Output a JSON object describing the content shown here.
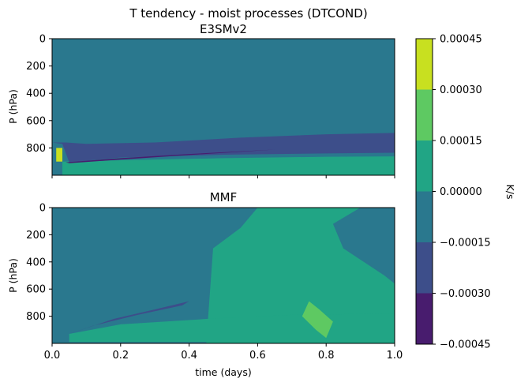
{
  "figure": {
    "suptitle": "T tendency - moist processes (DTCOND)"
  },
  "colorbar": {
    "label": "K/s",
    "levels": [
      -0.00045,
      -0.0003,
      -0.00015,
      0.0,
      0.00015,
      0.0003,
      0.00045
    ],
    "tick_labels": [
      "−0.00045",
      "−0.00030",
      "−0.00015",
      "0.00000",
      "0.00015",
      "0.00030",
      "0.00045"
    ],
    "colors": [
      "#481c6e",
      "#3d4e8a",
      "#2a788e",
      "#21a585",
      "#5ec962",
      "#c8e020"
    ]
  },
  "chart_data": [
    {
      "type": "heatmap",
      "title": "E3SMv2",
      "xlabel": "",
      "ylabel": "P (hPa)",
      "xlim": [
        0.0,
        1.0
      ],
      "ylim": [
        1000,
        0
      ],
      "yticks": [
        0,
        200,
        400,
        600,
        800
      ],
      "ytick_labels": [
        "0",
        "200",
        "400",
        "600",
        "800"
      ],
      "xticks": [
        0.0,
        0.2,
        0.4,
        0.6,
        0.8,
        1.0
      ],
      "xtick_labels_shown": false,
      "background_level_index": 2,
      "features": [
        {
          "name": "lower-boundary-layer",
          "level_index": 3,
          "t": [
            0.03,
            1.0
          ],
          "p": [
            860,
            1000
          ]
        },
        {
          "name": "negative-band-low",
          "level_index": 1,
          "t": [
            0.0,
            1.0
          ],
          "p": [
            690,
            900
          ]
        },
        {
          "name": "strong-negative-streak",
          "level_index": 0,
          "t": [
            0.03,
            0.65
          ],
          "p": [
            810,
            910
          ]
        },
        {
          "name": "initial-positive-spike",
          "level_index": 5,
          "t": [
            0.01,
            0.03
          ],
          "p": [
            800,
            900
          ]
        }
      ]
    },
    {
      "type": "heatmap",
      "title": "MMF",
      "xlabel": "time (days)",
      "ylabel": "P (hPa)",
      "xlim": [
        0.0,
        1.0
      ],
      "ylim": [
        1000,
        0
      ],
      "yticks": [
        0,
        200,
        400,
        600,
        800
      ],
      "ytick_labels": [
        "0",
        "200",
        "400",
        "600",
        "800"
      ],
      "xticks": [
        0.0,
        0.2,
        0.4,
        0.6,
        0.8,
        1.0
      ],
      "xtick_labels": [
        "0.0",
        "0.2",
        "0.4",
        "0.6",
        "0.8",
        "1.0"
      ],
      "background_level_index": 2,
      "features": [
        {
          "name": "convective-heating-region",
          "level_index": 3,
          "t": [
            0.45,
            1.0
          ],
          "p": [
            0,
            1000
          ]
        },
        {
          "name": "shallow-heating-low",
          "level_index": 3,
          "t": [
            0.05,
            1.0
          ],
          "p": [
            780,
            1000
          ]
        },
        {
          "name": "negative-tilted-band",
          "level_index": 1,
          "t": [
            0.05,
            0.4
          ],
          "p": [
            690,
            930
          ]
        },
        {
          "name": "positive-spike-late",
          "level_index": 4,
          "t": [
            0.73,
            0.82
          ],
          "p": [
            690,
            960
          ]
        }
      ]
    }
  ]
}
